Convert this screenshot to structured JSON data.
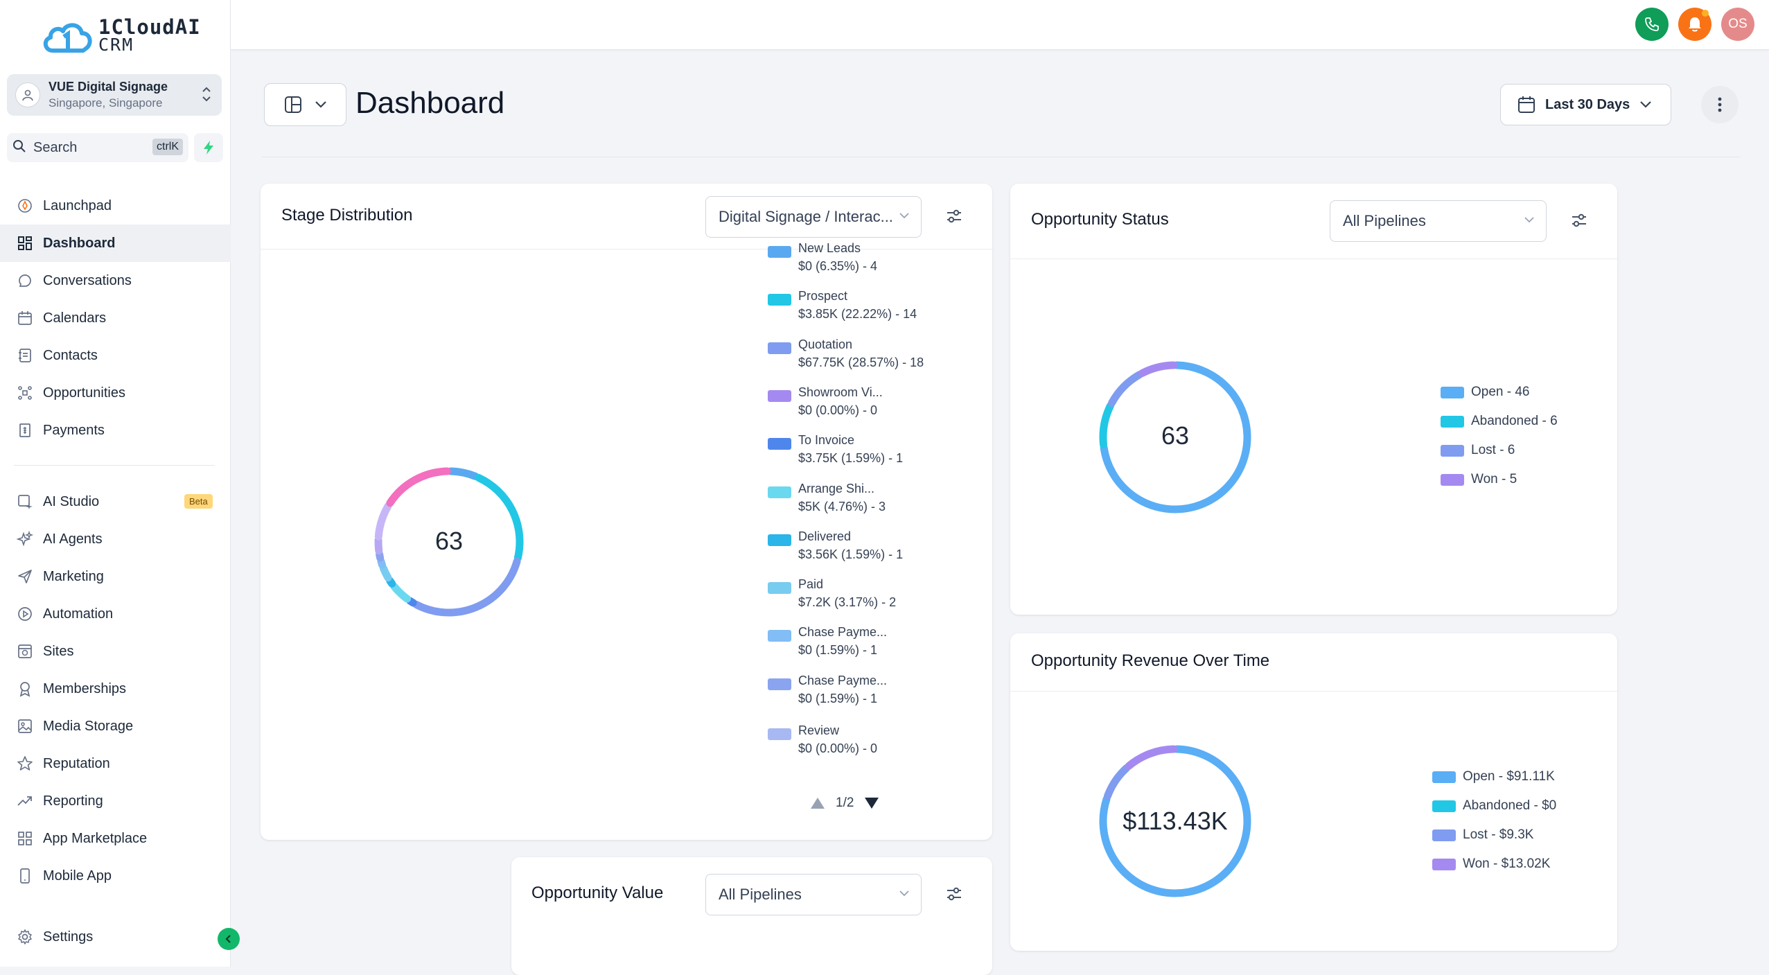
{
  "brand": {
    "line1": "1CloudAI",
    "line2": "CRM"
  },
  "account": {
    "name": "VUE Digital Signage",
    "location": "Singapore, Singapore"
  },
  "search": {
    "label": "Search",
    "shortcut": "ctrlK"
  },
  "nav": {
    "group1": [
      {
        "label": "Launchpad",
        "icon": "rocket-icon"
      },
      {
        "label": "Dashboard",
        "icon": "grid-icon",
        "active": true
      },
      {
        "label": "Conversations",
        "icon": "chat-icon"
      },
      {
        "label": "Calendars",
        "icon": "calendar-icon"
      },
      {
        "label": "Contacts",
        "icon": "contacts-icon"
      },
      {
        "label": "Opportunities",
        "icon": "opportunities-icon"
      },
      {
        "label": "Payments",
        "icon": "payments-icon"
      }
    ],
    "group2": [
      {
        "label": "AI Studio",
        "icon": "ai-studio-icon",
        "badge": "Beta"
      },
      {
        "label": "AI Agents",
        "icon": "sparkle-icon"
      },
      {
        "label": "Marketing",
        "icon": "send-icon"
      },
      {
        "label": "Automation",
        "icon": "automation-icon"
      },
      {
        "label": "Sites",
        "icon": "sites-icon"
      },
      {
        "label": "Memberships",
        "icon": "badge-icon"
      },
      {
        "label": "Media Storage",
        "icon": "image-icon"
      },
      {
        "label": "Reputation",
        "icon": "star-icon"
      },
      {
        "label": "Reporting",
        "icon": "trend-icon"
      },
      {
        "label": "App Marketplace",
        "icon": "apps-icon"
      },
      {
        "label": "Mobile App",
        "icon": "mobile-icon"
      }
    ],
    "settings": {
      "label": "Settings",
      "icon": "gear-icon"
    }
  },
  "topbar": {
    "avatar_initials": "OS"
  },
  "header": {
    "title": "Dashboard",
    "date_range": "Last 30 Days"
  },
  "stage_distribution": {
    "title": "Stage Distribution",
    "pipeline": "Digital Signage / Interac...",
    "center": "63",
    "pager": "1/2",
    "legend": [
      {
        "name": "New Leads",
        "detail": "$0 (6.35%) - 4",
        "color": "#5aa9f0",
        "share": 6.35
      },
      {
        "name": "Prospect",
        "detail": "$3.85K (22.22%) - 14",
        "color": "#22c7e6",
        "share": 22.22
      },
      {
        "name": "Quotation",
        "detail": "$67.75K (28.57%) - 18",
        "color": "#7f9cf0",
        "share": 28.57
      },
      {
        "name": "Showroom Vi...",
        "detail": "$0 (0.00%) - 0",
        "color": "#a48af0",
        "share": 0
      },
      {
        "name": "To Invoice",
        "detail": "$3.75K (1.59%) - 1",
        "color": "#4f86ec",
        "share": 1.59
      },
      {
        "name": "Arrange Shi...",
        "detail": "$5K (4.76%) - 3",
        "color": "#6ad9f0",
        "share": 4.76
      },
      {
        "name": "Delivered",
        "detail": "$3.56K (1.59%) - 1",
        "color": "#2bb5e8",
        "share": 1.59
      },
      {
        "name": "Paid",
        "detail": "$7.2K (3.17%) - 2",
        "color": "#78ccf0",
        "share": 3.17
      },
      {
        "name": "Chase Payme...",
        "detail": "$0 (1.59%) - 1",
        "color": "#82bdf5",
        "share": 1.59
      },
      {
        "name": "Chase Payme...",
        "detail": "$0 (1.59%) - 1",
        "color": "#8aa4f0",
        "share": 1.59
      },
      {
        "name": "Review",
        "detail": "$0 (0.00%) - 0",
        "color": "#a8b8f2",
        "share": 0
      }
    ],
    "extra_segments": [
      {
        "color": "#b7a8f3",
        "share": 3.17
      },
      {
        "color": "#c7b6f7",
        "share": 7.94
      },
      {
        "color": "#f36fbf",
        "share": 15.87
      }
    ]
  },
  "opportunity_status": {
    "title": "Opportunity Status",
    "pipeline": "All Pipelines",
    "center": "63",
    "legend": [
      {
        "label": "Open - 46",
        "color": "#5aaef5",
        "value": 46
      },
      {
        "label": "Abandoned - 6",
        "color": "#22c7e6",
        "value": 6
      },
      {
        "label": "Lost - 6",
        "color": "#7f9cf0",
        "value": 6
      },
      {
        "label": "Won - 5",
        "color": "#a48af0",
        "value": 5
      }
    ]
  },
  "opportunity_revenue": {
    "title": "Opportunity Revenue Over Time",
    "center": "$113.43K",
    "legend": [
      {
        "label": "Open - $91.11K",
        "color": "#5aaef5",
        "value": 91.11
      },
      {
        "label": "Abandoned - $0",
        "color": "#22c7e6",
        "value": 0
      },
      {
        "label": "Lost - $9.3K",
        "color": "#7f9cf0",
        "value": 9.3
      },
      {
        "label": "Won - $13.02K",
        "color": "#a48af0",
        "value": 13.02
      }
    ]
  },
  "opportunity_value": {
    "title": "Opportunity Value",
    "pipeline": "All Pipelines"
  }
}
